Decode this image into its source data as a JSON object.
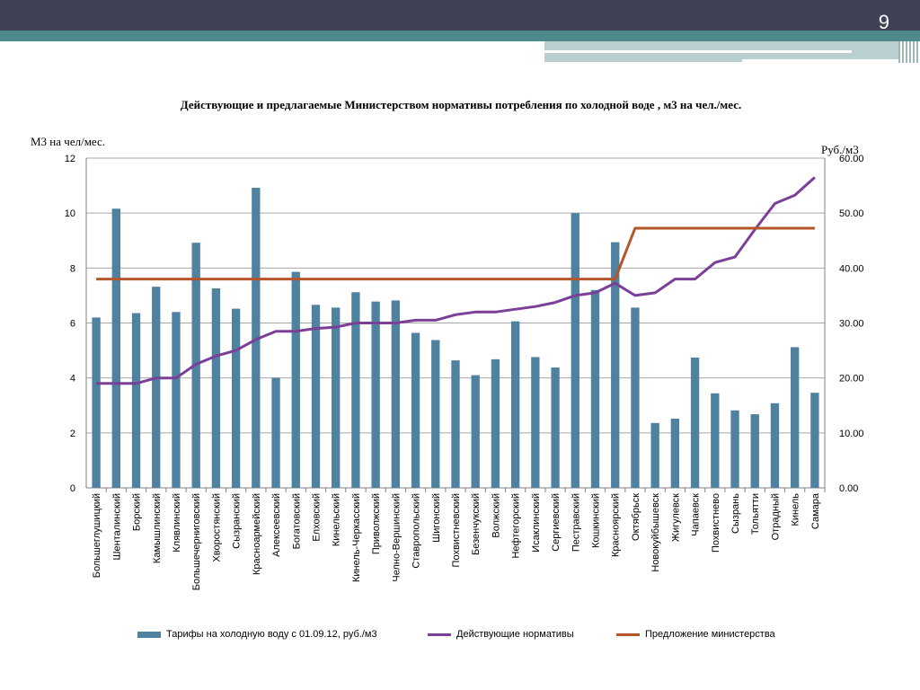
{
  "slide": {
    "number": "9"
  },
  "chart_data": {
    "type": "bar",
    "title": "Действующие и предлагаемые Министерством нормативы потребления по холодной воде , м3 на чел./мес.",
    "ylabel_left": "М3 на чел/мес.",
    "ylabel_right": "Руб./м3",
    "ylim_left": [
      0,
      12
    ],
    "ylim_right": [
      0,
      60
    ],
    "yticks_left": [
      "0",
      "2",
      "4",
      "6",
      "8",
      "10",
      "12"
    ],
    "yticks_right": [
      "0.00",
      "10.00",
      "20.00",
      "30.00",
      "40.00",
      "50.00",
      "60.00"
    ],
    "grid": true,
    "legend_position": "bottom",
    "categories": [
      "Большеглушицкий",
      "Шенталинский",
      "Борский",
      "Камышлинский",
      "Клявлинский",
      "Большечерниговский",
      "Хворостянский",
      "Сызранский",
      "Красноармейский",
      "Алексеевский",
      "Богатовский",
      "Елховский",
      "Кинельский",
      "Кинель-Черкасский",
      "Приволжский",
      "Челно-Вершинский",
      "Ставропольский",
      "Шигонский",
      "Похвистневский",
      "Безенчукский",
      "Волжский",
      "Нефтегорский",
      "Исаклинский",
      "Сергиевский",
      "Пестравский",
      "Кошкинский",
      "Красноярский",
      "Октябрьск",
      "Новокуйбышевск",
      "Жигулевск",
      "Чапаевск",
      "Похвистнево",
      "Сызрань",
      "Тольятти",
      "Отрадный",
      "Кинель",
      "Самара"
    ],
    "series": [
      {
        "name": "Тарифы на холодную воду с 01.09.12, руб./м3",
        "type": "bar",
        "axis": "right",
        "color": "#4f81a0",
        "values": [
          31.0,
          50.8,
          31.8,
          36.6,
          32.0,
          44.6,
          36.3,
          32.6,
          54.6,
          20.0,
          39.3,
          33.3,
          32.8,
          35.6,
          33.9,
          34.1,
          28.2,
          26.9,
          23.2,
          20.5,
          23.4,
          30.3,
          23.8,
          21.9,
          50.0,
          36.0,
          44.7,
          32.8,
          11.8,
          12.6,
          23.7,
          17.2,
          14.1,
          13.4,
          15.4,
          25.6,
          17.3
        ]
      },
      {
        "name": "Действующие нормативы",
        "type": "line",
        "axis": "left",
        "color": "#7b3f98",
        "values": [
          3.8,
          3.8,
          3.8,
          4.0,
          4.0,
          4.5,
          4.8,
          5.0,
          5.4,
          5.7,
          5.7,
          5.8,
          5.85,
          6.0,
          6.0,
          6.0,
          6.1,
          6.1,
          6.3,
          6.4,
          6.4,
          6.5,
          6.6,
          6.75,
          7.0,
          7.1,
          7.45,
          7.0,
          7.1,
          7.6,
          7.6,
          8.2,
          8.4,
          9.4,
          10.35,
          10.65,
          11.3
        ]
      },
      {
        "name": "Предложение министерства",
        "type": "line",
        "axis": "left",
        "color": "#b5562a",
        "values": [
          7.6,
          7.6,
          7.6,
          7.6,
          7.6,
          7.6,
          7.6,
          7.6,
          7.6,
          7.6,
          7.6,
          7.6,
          7.6,
          7.6,
          7.6,
          7.6,
          7.6,
          7.6,
          7.6,
          7.6,
          7.6,
          7.6,
          7.6,
          7.6,
          7.6,
          7.6,
          7.6,
          9.45,
          9.45,
          9.45,
          9.45,
          9.45,
          9.45,
          9.45,
          9.45,
          9.45,
          9.45
        ]
      }
    ]
  }
}
